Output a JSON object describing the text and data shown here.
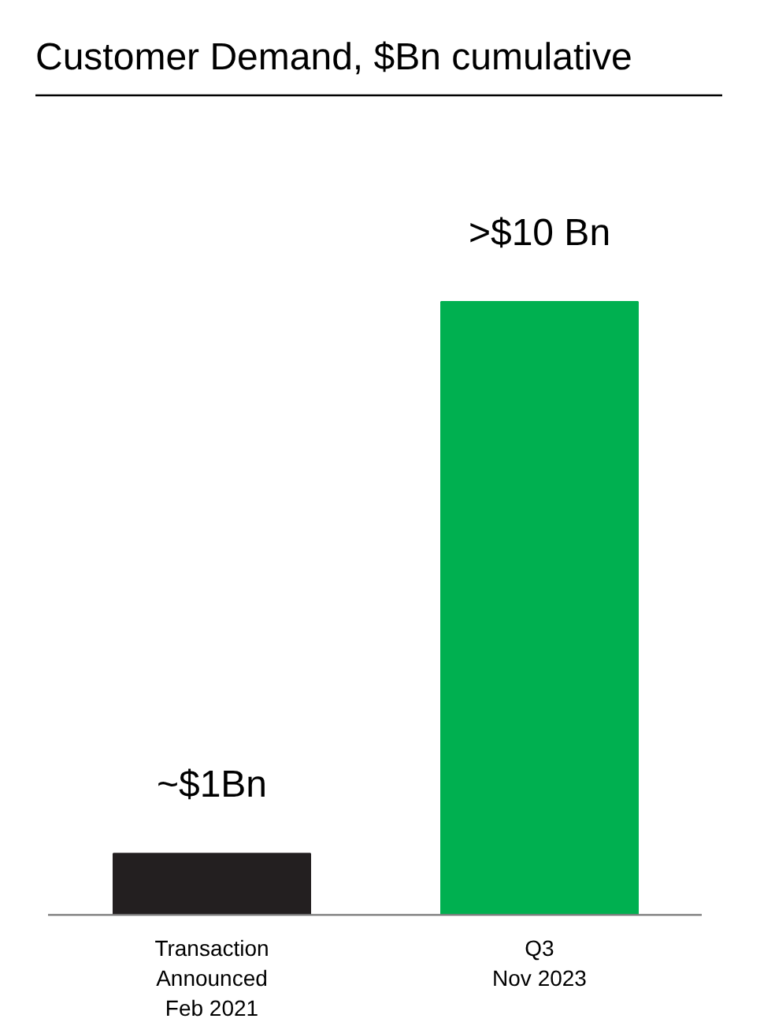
{
  "chart_data": {
    "type": "bar",
    "title": "Customer Demand, $Bn cumulative",
    "categories": [
      "Transaction\nAnnounced\nFeb 2021",
      "Q3\nNov 2023"
    ],
    "values": [
      1,
      10
    ],
    "colors": [
      "#231f20",
      "#00b050"
    ],
    "value_labels": [
      "~$1Bn",
      ">$10 Bn"
    ],
    "grid": false
  }
}
